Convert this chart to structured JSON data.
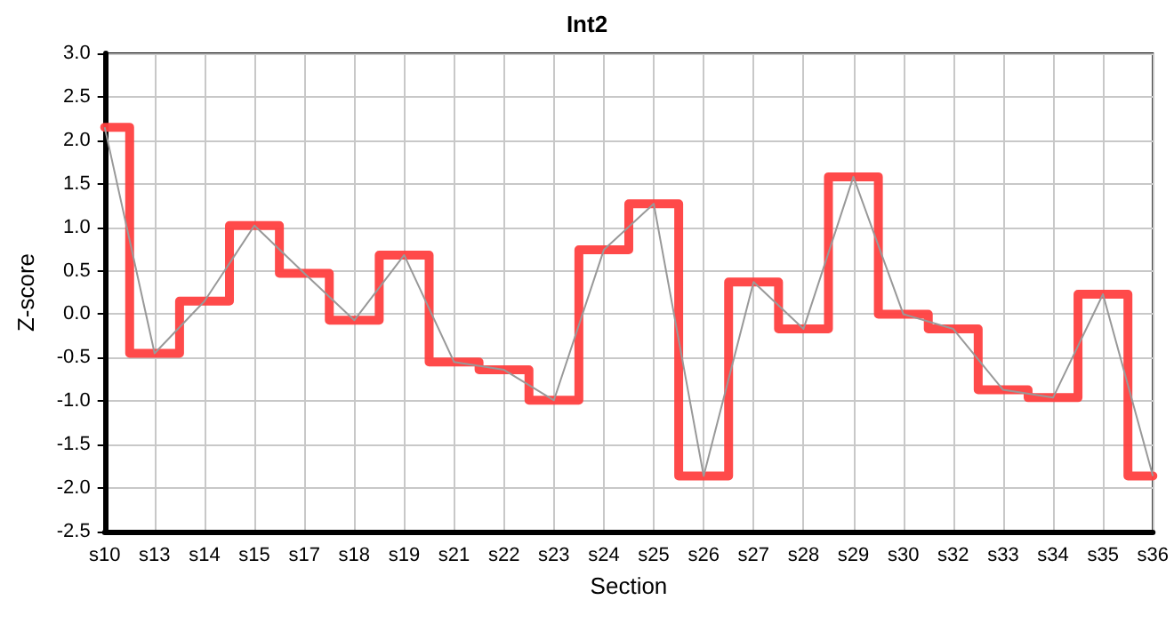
{
  "chart_data": {
    "type": "step",
    "title": "Int2",
    "xlabel": "Section",
    "ylabel": "Z-score",
    "categories": [
      "s10",
      "s13",
      "s14",
      "s15",
      "s17",
      "s18",
      "s19",
      "s21",
      "s22",
      "s23",
      "s24",
      "s25",
      "s26",
      "s27",
      "s28",
      "s29",
      "s30",
      "s32",
      "s33",
      "s34",
      "s35",
      "s36"
    ],
    "series": [
      {
        "color": "#ff4040",
        "values": [
          2.15,
          -0.45,
          0.15,
          1.02,
          0.47,
          -0.07,
          0.68,
          -0.55,
          -0.64,
          -0.99,
          0.74,
          1.27,
          -1.86,
          0.37,
          -0.17,
          1.58,
          0.0,
          -0.17,
          -0.87,
          -0.96,
          0.23,
          -1.86
        ]
      },
      {
        "type": "line",
        "color": "#999999",
        "values": [
          2.15,
          -0.45,
          0.15,
          1.02,
          0.47,
          -0.07,
          0.68,
          -0.55,
          -0.64,
          -0.99,
          0.74,
          1.27,
          -1.86,
          0.37,
          -0.17,
          1.58,
          0.0,
          -0.17,
          -0.87,
          -0.96,
          0.23,
          -1.86
        ]
      }
    ],
    "ylim": [
      -2.5,
      3.0
    ],
    "yticks": [
      {
        "value": -2.5,
        "label": "-2.5"
      },
      {
        "value": -2,
        "label": "-2.0"
      },
      {
        "value": -1.5,
        "label": "-1.5"
      },
      {
        "value": -1,
        "label": "-1.0"
      },
      {
        "value": -0.5,
        "label": "-0.5"
      },
      {
        "value": 0,
        "label": "0.0"
      },
      {
        "value": 0.5,
        "label": "0.5"
      },
      {
        "value": 1,
        "label": "1.0"
      },
      {
        "value": 1.5,
        "label": "1.5"
      },
      {
        "value": 2,
        "label": "2.0"
      },
      {
        "value": 2.5,
        "label": "2.5"
      },
      {
        "value": 3,
        "label": "3.0"
      }
    ],
    "grid": true,
    "marker": "none"
  }
}
